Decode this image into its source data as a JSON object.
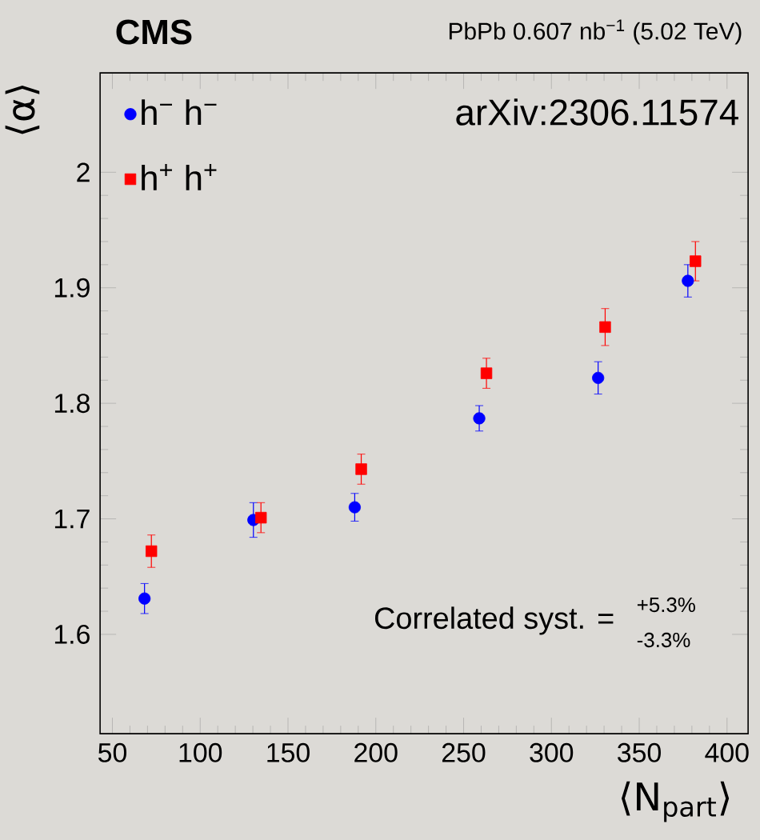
{
  "chart_data": {
    "type": "scatter",
    "title": "CMS",
    "subtitle": "PbPb 0.607 nb$^{−1}$ (5.02 TeV)",
    "xlabel": "⟨N$_{part}$⟩",
    "ylabel": "⟨α⟩",
    "annotations": [
      "arXiv:2306.11574",
      "Correlated syst. =",
      "+5.3%",
      "-3.3%"
    ],
    "series": [
      {
        "name": "h$^{−}$ h$^{−}$",
        "color": "#0000ff",
        "marker": "circle",
        "x": [
          68.3,
          130.3,
          188,
          258.9,
          326.6,
          377.7
        ],
        "values": [
          1.631,
          1.699,
          1.71,
          1.787,
          1.822,
          1.906
        ],
        "errors": [
          0.013,
          0.015,
          0.012,
          0.011,
          0.014,
          0.014
        ]
      },
      {
        "name": "h$^{+}$ h$^{+}$",
        "color": "#ff0000",
        "marker": "square",
        "x": [
          72.2,
          134.6,
          191.7,
          263,
          330.6,
          382
        ],
        "values": [
          1.672,
          1.701,
          1.743,
          1.826,
          1.866,
          1.923
        ],
        "errors": [
          0.014,
          0.013,
          0.013,
          0.013,
          0.016,
          0.017
        ]
      }
    ],
    "xlim": [
      43,
      412
    ],
    "xticks": [
      50,
      100,
      150,
      200,
      250,
      300,
      350,
      400
    ],
    "ylim": [
      1.514,
      2.086
    ],
    "yticks": [
      1.6,
      1.7,
      1.8,
      1.9,
      2
    ],
    "grid": false,
    "legend": "top left"
  }
}
